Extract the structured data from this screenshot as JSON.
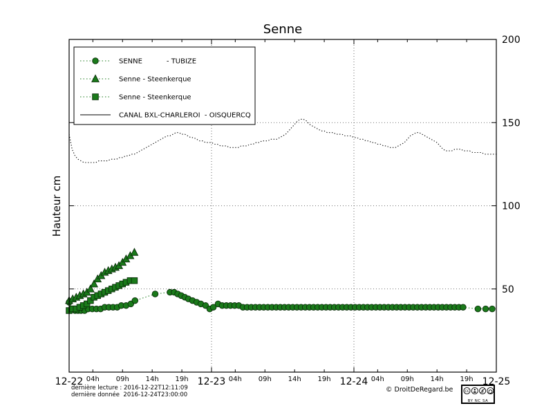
{
  "footer": {
    "line1": "dernière lecture : 2016-12-22T12:11:09",
    "line2": "dernière donnée  2016-12-24T23:00:00",
    "credit": "© DroitDeRegard.be",
    "cc_label": "cc",
    "nc_symbol": "$",
    "cc_codes": "BY NC SA"
  },
  "chart_data": {
    "type": "line",
    "title": "Senne",
    "ylabel": "Hauteur cm",
    "ylim": [
      0,
      200
    ],
    "yticks": [
      50,
      100,
      150,
      200
    ],
    "y_axis_side": "right",
    "x_unit": "hours from 2016-12-22 00:00",
    "xlim": [
      0,
      72
    ],
    "xticks_major": [
      {
        "h": 0,
        "label": "12-22"
      },
      {
        "h": 24,
        "label": "12-23"
      },
      {
        "h": 48,
        "label": "12-24"
      },
      {
        "h": 72,
        "label": "12-25"
      }
    ],
    "xticks_minor": [
      {
        "h": 4,
        "label": "04h"
      },
      {
        "h": 9,
        "label": "09h"
      },
      {
        "h": 14,
        "label": "14h"
      },
      {
        "h": 19,
        "label": "19h"
      },
      {
        "h": 28,
        "label": "04h"
      },
      {
        "h": 33,
        "label": "09h"
      },
      {
        "h": 38,
        "label": "14h"
      },
      {
        "h": 43,
        "label": "19h"
      },
      {
        "h": 52,
        "label": "04h"
      },
      {
        "h": 57,
        "label": "09h"
      },
      {
        "h": 62,
        "label": "14h"
      },
      {
        "h": 67,
        "label": "19h"
      }
    ],
    "grid": {
      "vertical_at": [
        24,
        48
      ],
      "horizontal_at": [
        50,
        100,
        150
      ]
    },
    "legend_position": "upper left",
    "colors": {
      "green": "#1a7a1a",
      "black": "#000000"
    },
    "legend": [
      {
        "label": "SENNE           - TUBIZE",
        "marker": "circle",
        "color": "#1a7a1a",
        "line": "dotted"
      },
      {
        "label": "Senne - Steenkerque",
        "marker": "triangle",
        "color": "#1a7a1a",
        "line": "dotted"
      },
      {
        "label": "Senne - Steenkerque",
        "marker": "square",
        "color": "#1a7a1a",
        "line": "dotted"
      },
      {
        "label": "CANAL BXL-CHARLEROI  - OISQUERCQ",
        "marker": "none",
        "color": "#000000",
        "line": "dotted"
      }
    ],
    "series": [
      {
        "id": "canal-bxl-charleroi-oisquercq",
        "name": "CANAL BXL-CHARLEROI - OISQUERCQ",
        "marker": "none",
        "color": "#000000",
        "points": [
          [
            0,
            143
          ],
          [
            0.5,
            134
          ],
          [
            1,
            130
          ],
          [
            1.5,
            128
          ],
          [
            2,
            127
          ],
          [
            2.5,
            126
          ],
          [
            3,
            126
          ],
          [
            3.5,
            126
          ],
          [
            4,
            126
          ],
          [
            4.5,
            126
          ],
          [
            5,
            127
          ],
          [
            5.5,
            127
          ],
          [
            6,
            127
          ],
          [
            6.5,
            127
          ],
          [
            7,
            128
          ],
          [
            7.5,
            128
          ],
          [
            8,
            128
          ],
          [
            8.5,
            129
          ],
          [
            9,
            129
          ],
          [
            9.5,
            130
          ],
          [
            10,
            130
          ],
          [
            10.5,
            131
          ],
          [
            11,
            131
          ],
          [
            11.5,
            132
          ],
          [
            12,
            133
          ],
          [
            12.5,
            134
          ],
          [
            13,
            135
          ],
          [
            13.5,
            136
          ],
          [
            14,
            137
          ],
          [
            14.5,
            138
          ],
          [
            15,
            139
          ],
          [
            15.5,
            140
          ],
          [
            16,
            141
          ],
          [
            16.5,
            142
          ],
          [
            17,
            142
          ],
          [
            17.5,
            143
          ],
          [
            18,
            144
          ],
          [
            18.5,
            144
          ],
          [
            19,
            143
          ],
          [
            19.5,
            143
          ],
          [
            20,
            142
          ],
          [
            20.5,
            141
          ],
          [
            21,
            141
          ],
          [
            21.5,
            140
          ],
          [
            22,
            139
          ],
          [
            22.5,
            139
          ],
          [
            23,
            138
          ],
          [
            23.5,
            138
          ],
          [
            24,
            138
          ],
          [
            24.5,
            137
          ],
          [
            25,
            137
          ],
          [
            25.5,
            136
          ],
          [
            26,
            136
          ],
          [
            26.5,
            136
          ],
          [
            27,
            135
          ],
          [
            27.5,
            135
          ],
          [
            28,
            135
          ],
          [
            28.5,
            135
          ],
          [
            29,
            136
          ],
          [
            29.5,
            136
          ],
          [
            30,
            136
          ],
          [
            30.5,
            137
          ],
          [
            31,
            137
          ],
          [
            31.5,
            138
          ],
          [
            32,
            138
          ],
          [
            32.5,
            139
          ],
          [
            33,
            139
          ],
          [
            33.5,
            139
          ],
          [
            34,
            140
          ],
          [
            34.5,
            140
          ],
          [
            35,
            140
          ],
          [
            35.5,
            141
          ],
          [
            36,
            142
          ],
          [
            36.5,
            143
          ],
          [
            37,
            145
          ],
          [
            37.5,
            147
          ],
          [
            38,
            149
          ],
          [
            38.5,
            151
          ],
          [
            39,
            152
          ],
          [
            39.5,
            152
          ],
          [
            40,
            151
          ],
          [
            40.5,
            149
          ],
          [
            41,
            148
          ],
          [
            41.5,
            147
          ],
          [
            42,
            146
          ],
          [
            42.5,
            145
          ],
          [
            43,
            145
          ],
          [
            43.5,
            144
          ],
          [
            44,
            144
          ],
          [
            44.5,
            144
          ],
          [
            45,
            143
          ],
          [
            45.5,
            143
          ],
          [
            46,
            143
          ],
          [
            46.5,
            142
          ],
          [
            47,
            142
          ],
          [
            47.5,
            142
          ],
          [
            48,
            141
          ],
          [
            48.5,
            141
          ],
          [
            49,
            140
          ],
          [
            49.5,
            140
          ],
          [
            50,
            139
          ],
          [
            50.5,
            139
          ],
          [
            51,
            138
          ],
          [
            51.5,
            138
          ],
          [
            52,
            137
          ],
          [
            52.5,
            137
          ],
          [
            53,
            136
          ],
          [
            53.5,
            136
          ],
          [
            54,
            135
          ],
          [
            54.5,
            135
          ],
          [
            55,
            135
          ],
          [
            55.5,
            136
          ],
          [
            56,
            137
          ],
          [
            56.5,
            138
          ],
          [
            57,
            140
          ],
          [
            57.5,
            142
          ],
          [
            58,
            143
          ],
          [
            58.5,
            144
          ],
          [
            59,
            144
          ],
          [
            59.5,
            143
          ],
          [
            60,
            142
          ],
          [
            60.5,
            141
          ],
          [
            61,
            140
          ],
          [
            61.5,
            139
          ],
          [
            62,
            138
          ],
          [
            62.5,
            136
          ],
          [
            63,
            134
          ],
          [
            63.5,
            133
          ],
          [
            64,
            133
          ],
          [
            64.5,
            133
          ],
          [
            65,
            134
          ],
          [
            65.5,
            134
          ],
          [
            66,
            134
          ],
          [
            66.5,
            133
          ],
          [
            67,
            133
          ],
          [
            67.5,
            133
          ],
          [
            68,
            132
          ],
          [
            68.5,
            132
          ],
          [
            69,
            132
          ],
          [
            69.5,
            132
          ],
          [
            70,
            131
          ],
          [
            70.5,
            131
          ],
          [
            71,
            131
          ],
          [
            71.5,
            131
          ],
          [
            72,
            131
          ]
        ]
      },
      {
        "id": "senne-tubize",
        "name": "SENNE - TUBIZE",
        "marker": "circle",
        "color": "#1a7a1a",
        "points": [
          [
            0,
            42
          ],
          [
            0.5,
            38
          ],
          [
            1,
            37
          ],
          [
            1.5,
            37
          ],
          [
            2,
            37
          ],
          [
            2.6,
            37
          ],
          [
            3.2,
            38
          ],
          [
            3.9,
            38
          ],
          [
            4.6,
            38
          ],
          [
            5.3,
            38
          ],
          [
            6,
            39
          ],
          [
            6.7,
            39
          ],
          [
            7.4,
            39
          ],
          [
            8.1,
            39
          ],
          [
            8.8,
            40
          ],
          [
            9.6,
            40
          ],
          [
            10.4,
            41
          ],
          [
            11.1,
            43
          ],
          [
            14.5,
            47
          ],
          [
            17,
            48
          ],
          [
            17.7,
            48
          ],
          [
            18.3,
            47
          ],
          [
            18.9,
            46
          ],
          [
            19.5,
            45
          ],
          [
            20.1,
            44
          ],
          [
            20.8,
            43
          ],
          [
            21.5,
            42
          ],
          [
            22.2,
            41
          ],
          [
            23,
            40
          ],
          [
            23.7,
            38
          ],
          [
            24.3,
            39
          ],
          [
            25.1,
            41
          ],
          [
            25.8,
            40
          ],
          [
            26.5,
            40
          ],
          [
            27.2,
            40
          ],
          [
            27.9,
            40
          ],
          [
            28.6,
            40
          ],
          [
            29.3,
            39
          ],
          [
            30,
            39
          ],
          [
            30.7,
            39
          ],
          [
            31.4,
            39
          ],
          [
            32.1,
            39
          ],
          [
            32.8,
            39
          ],
          [
            33.5,
            39
          ],
          [
            34.2,
            39
          ],
          [
            34.9,
            39
          ],
          [
            35.6,
            39
          ],
          [
            36.3,
            39
          ],
          [
            37,
            39
          ],
          [
            37.7,
            39
          ],
          [
            38.4,
            39
          ],
          [
            39.1,
            39
          ],
          [
            39.8,
            39
          ],
          [
            40.5,
            39
          ],
          [
            41.2,
            39
          ],
          [
            41.9,
            39
          ],
          [
            42.6,
            39
          ],
          [
            43.3,
            39
          ],
          [
            44,
            39
          ],
          [
            44.7,
            39
          ],
          [
            45.4,
            39
          ],
          [
            46.1,
            39
          ],
          [
            46.8,
            39
          ],
          [
            47.5,
            39
          ],
          [
            48.2,
            39
          ],
          [
            48.9,
            39
          ],
          [
            49.6,
            39
          ],
          [
            50.3,
            39
          ],
          [
            51,
            39
          ],
          [
            51.7,
            39
          ],
          [
            52.4,
            39
          ],
          [
            53.1,
            39
          ],
          [
            53.8,
            39
          ],
          [
            54.5,
            39
          ],
          [
            55.2,
            39
          ],
          [
            55.9,
            39
          ],
          [
            56.6,
            39
          ],
          [
            57.3,
            39
          ],
          [
            58,
            39
          ],
          [
            58.7,
            39
          ],
          [
            59.4,
            39
          ],
          [
            60.1,
            39
          ],
          [
            60.8,
            39
          ],
          [
            61.5,
            39
          ],
          [
            62.2,
            39
          ],
          [
            62.9,
            39
          ],
          [
            63.6,
            39
          ],
          [
            64.3,
            39
          ],
          [
            65,
            39
          ],
          [
            65.7,
            39
          ],
          [
            66.4,
            39
          ],
          [
            68.9,
            38
          ],
          [
            70.2,
            38
          ],
          [
            71.3,
            38
          ]
        ]
      },
      {
        "id": "senne-steenkerque-triangles",
        "name": "Senne - Steenkerque",
        "marker": "triangle",
        "color": "#1a7a1a",
        "points": [
          [
            0,
            43
          ],
          [
            0.6,
            44
          ],
          [
            1.2,
            45
          ],
          [
            1.8,
            46
          ],
          [
            2.4,
            47
          ],
          [
            3,
            48
          ],
          [
            3.6,
            50
          ],
          [
            4.2,
            53
          ],
          [
            4.8,
            56
          ],
          [
            5.4,
            58
          ],
          [
            6,
            60
          ],
          [
            6.6,
            61
          ],
          [
            7.2,
            62
          ],
          [
            7.8,
            63
          ],
          [
            8.4,
            64
          ],
          [
            9,
            66
          ],
          [
            9.6,
            68
          ],
          [
            10.3,
            70
          ],
          [
            11,
            72
          ]
        ]
      },
      {
        "id": "senne-steenkerque-squares",
        "name": "Senne - Steenkerque",
        "marker": "square",
        "color": "#1a7a1a",
        "points": [
          [
            0,
            37
          ],
          [
            0.6,
            38
          ],
          [
            1.2,
            38
          ],
          [
            1.8,
            39
          ],
          [
            2.4,
            40
          ],
          [
            3,
            41
          ],
          [
            3.6,
            43
          ],
          [
            4.2,
            45
          ],
          [
            4.8,
            46
          ],
          [
            5.4,
            47
          ],
          [
            6,
            48
          ],
          [
            6.6,
            49
          ],
          [
            7.2,
            50
          ],
          [
            7.8,
            51
          ],
          [
            8.4,
            52
          ],
          [
            9,
            53
          ],
          [
            9.6,
            54
          ],
          [
            10.3,
            55
          ],
          [
            11,
            55
          ]
        ]
      }
    ]
  }
}
